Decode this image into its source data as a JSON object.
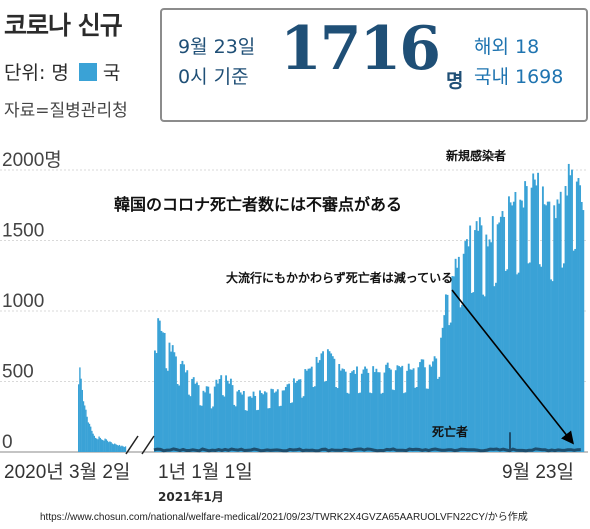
{
  "header": {
    "title": "코로나 신규",
    "unit_label": "단위: 명",
    "legend_label": "국",
    "source": "자료=질병관리청"
  },
  "info_box": {
    "date": "9월 23일",
    "time": "0시 기준",
    "total": "1716",
    "total_unit": "명",
    "overseas": "해외 18",
    "domestic": "국내 1698"
  },
  "colors": {
    "bars": "#3aa2d6",
    "deaths": "#1d4e6e",
    "text_dark": "#1f4f76",
    "arrow": "#000000"
  },
  "annotations": {
    "main": "韓国のコロナ死亡者数には不審点がある",
    "decline": "大流行にもかかわらず死亡者は減っている",
    "new_cases": "新規感染者",
    "deaths": "死亡者",
    "year_2021": "2021年1月",
    "footer": "https://www.chosun.com/national/welfare-medical/2021/09/23/TWRK2X4GVZA65AARUOLVFN22CY/から作成"
  },
  "chart_data": {
    "type": "bar",
    "title": "",
    "xlabel": "",
    "ylabel": "",
    "ylim": [
      0,
      2000
    ],
    "y_ticks": [
      0,
      500,
      1000,
      1500,
      2000
    ],
    "y_tick_labels": [
      "0",
      "500",
      "1000",
      "1500",
      "2000명"
    ],
    "x_tick_labels": [
      "2020년 3월 2일",
      "1년 1월 1일",
      "9월 23일"
    ],
    "axis_break": true,
    "legend": "top-left",
    "grid": true,
    "segment_2020": {
      "period": "2020-03 to 2020-04",
      "values": [
        480,
        600,
        520,
        440,
        360,
        330,
        300,
        250,
        210,
        200,
        180,
        150,
        130,
        115,
        100,
        95,
        90,
        110,
        100,
        90,
        85,
        80,
        95,
        90,
        80,
        70,
        75,
        70,
        60,
        55,
        60,
        55,
        50,
        45,
        50,
        40,
        45,
        40,
        35,
        40
      ]
    },
    "segment_2021": {
      "period": "2021-01-01 to 2021-09-23",
      "anchors": [
        [
          0,
          1000
        ],
        [
          6,
          850
        ],
        [
          12,
          700
        ],
        [
          20,
          580
        ],
        [
          28,
          460
        ],
        [
          35,
          430
        ],
        [
          42,
          560
        ],
        [
          50,
          450
        ],
        [
          58,
          400
        ],
        [
          66,
          420
        ],
        [
          74,
          440
        ],
        [
          82,
          470
        ],
        [
          90,
          520
        ],
        [
          98,
          640
        ],
        [
          106,
          700
        ],
        [
          114,
          620
        ],
        [
          122,
          560
        ],
        [
          130,
          600
        ],
        [
          138,
          560
        ],
        [
          146,
          620
        ],
        [
          154,
          580
        ],
        [
          162,
          640
        ],
        [
          170,
          620
        ],
        [
          176,
          740
        ],
        [
          182,
          1250
        ],
        [
          188,
          1400
        ],
        [
          194,
          1550
        ],
        [
          200,
          1600
        ],
        [
          206,
          1500
        ],
        [
          212,
          1700
        ],
        [
          218,
          1800
        ],
        [
          224,
          1750
        ],
        [
          230,
          1850
        ],
        [
          236,
          1900
        ],
        [
          242,
          1750
        ],
        [
          248,
          1650
        ],
        [
          254,
          1900
        ],
        [
          260,
          2000
        ],
        [
          265,
          1716
        ]
      ]
    },
    "deaths_series": {
      "name": "死亡者",
      "approx_level": 8
    },
    "highlight": {
      "label": "9월 23일",
      "value": 1716
    }
  }
}
